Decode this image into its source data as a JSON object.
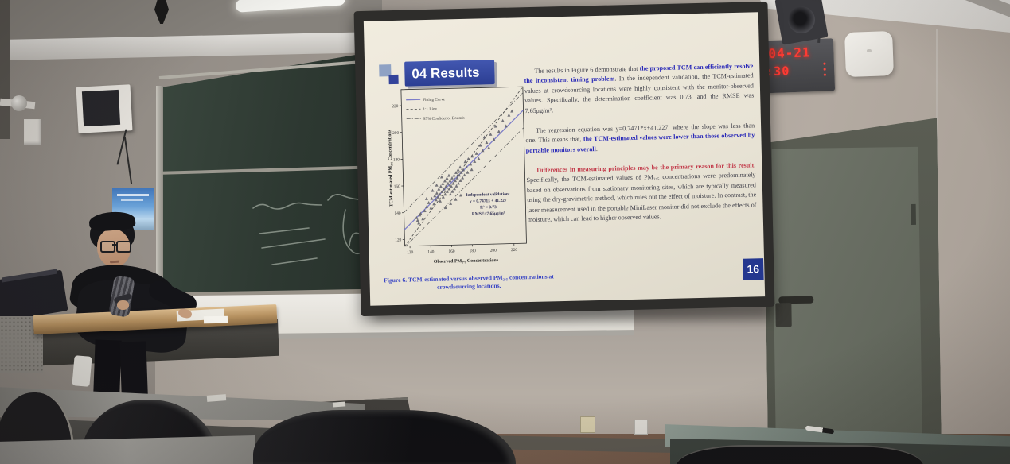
{
  "clock": {
    "date": "04-21",
    "time": ":30"
  },
  "slide": {
    "title": "04 Results",
    "page_number": "16",
    "caption": "Figure 6. TCM-estimated versus observed PM₂.₅ concentrations at crowdsourcing locations.",
    "paragraph1": {
      "t1": "The results in Figure 6 demonstrate that ",
      "b1": "the proposed TCM can efficiently resolve the inconsistent timing problem",
      "t2": ". In the independent validation, the TCM-estimated values at crowdsourcing locations were highly consistent with the monitor-observed values. Specifically, the determination coefficient was 0.73, and the RMSE was 7.65μg/m³."
    },
    "paragraph2": {
      "t1": "The regression equation was y=0.7471*x+41.227, where the slope was less than one. This means that, ",
      "b1": "the TCM-estimated values were lower than those observed by portable monitors overall",
      "t2": "."
    },
    "paragraph3": {
      "b1": "Differences in measuring principles may be the primary reason for this result",
      "t1": ". Specifically, the TCM-estimated values of PM₂.₅ concentrations were predominately based on observations from stationary monitoring sites, which are typically measured using the dry-gravimetric method, which rules out the effect of moisture. In contrast, the laser measurement used in the portable MiniLaser monitor did not exclude the effects of moisture, which can lead to higher observed values."
    }
  },
  "chart_data": {
    "type": "scatter",
    "title": "",
    "xlabel": "Observed PM₂.₅ Concentrations",
    "ylabel": "TCM-estimated PM₂.₅ Concentrations",
    "xlim": [
      115,
      232
    ],
    "ylim": [
      115,
      232
    ],
    "xticks": [
      120,
      140,
      160,
      180,
      200,
      220
    ],
    "yticks": [
      120,
      140,
      160,
      180,
      200,
      220
    ],
    "legend": [
      "Fitting Curve",
      "1:1 Line",
      "95% Confidence Bounds"
    ],
    "fit": {
      "slope": 0.7471,
      "intercept": 41.227
    },
    "confidence_offset": 13,
    "annotation": [
      "Independent validation:",
      "y = 0.7471x + 41.227",
      "R² = 0.73",
      "RMSE=7.65μg/m³"
    ],
    "points": [
      [
        127,
        136
      ],
      [
        129,
        132
      ],
      [
        131,
        139
      ],
      [
        133,
        135
      ],
      [
        128,
        134
      ],
      [
        135,
        141
      ],
      [
        130,
        138
      ],
      [
        137,
        144
      ],
      [
        139,
        147
      ],
      [
        141,
        143
      ],
      [
        142,
        150
      ],
      [
        144,
        146
      ],
      [
        145,
        152
      ],
      [
        146,
        149
      ],
      [
        147,
        154
      ],
      [
        148,
        151
      ],
      [
        149,
        157
      ],
      [
        150,
        153
      ],
      [
        150,
        148
      ],
      [
        151,
        159
      ],
      [
        152,
        155
      ],
      [
        153,
        151
      ],
      [
        153,
        161
      ],
      [
        154,
        157
      ],
      [
        155,
        153
      ],
      [
        155,
        163
      ],
      [
        156,
        159
      ],
      [
        157,
        155
      ],
      [
        157,
        165
      ],
      [
        158,
        161
      ],
      [
        159,
        157
      ],
      [
        159,
        167
      ],
      [
        160,
        163
      ],
      [
        160,
        153
      ],
      [
        161,
        159
      ],
      [
        162,
        165
      ],
      [
        162,
        155
      ],
      [
        163,
        161
      ],
      [
        164,
        167
      ],
      [
        164,
        157
      ],
      [
        165,
        163
      ],
      [
        166,
        169
      ],
      [
        166,
        159
      ],
      [
        167,
        165
      ],
      [
        168,
        161
      ],
      [
        168,
        171
      ],
      [
        169,
        167
      ],
      [
        170,
        163
      ],
      [
        170,
        173
      ],
      [
        171,
        169
      ],
      [
        172,
        165
      ],
      [
        173,
        171
      ],
      [
        174,
        167
      ],
      [
        175,
        177
      ],
      [
        176,
        173
      ],
      [
        177,
        169
      ],
      [
        178,
        179
      ],
      [
        180,
        175
      ],
      [
        181,
        171
      ],
      [
        182,
        181
      ],
      [
        184,
        177
      ],
      [
        186,
        183
      ],
      [
        188,
        179
      ],
      [
        190,
        189
      ],
      [
        192,
        185
      ],
      [
        194,
        195
      ],
      [
        196,
        191
      ],
      [
        198,
        187
      ],
      [
        200,
        197
      ],
      [
        203,
        193
      ],
      [
        205,
        203
      ],
      [
        208,
        199
      ],
      [
        212,
        207
      ],
      [
        215,
        203
      ],
      [
        218,
        211
      ],
      [
        221,
        214
      ],
      [
        155,
        143
      ],
      [
        160,
        146
      ],
      [
        165,
        149
      ],
      [
        170,
        152
      ],
      [
        147,
        160
      ],
      [
        152,
        166
      ],
      [
        143,
        156
      ],
      [
        137,
        150
      ]
    ]
  },
  "colors": {
    "accent_navy": "#2c3e93",
    "bold_blue": "#2929b8",
    "bold_red": "#c23a4a",
    "caption_blue": "#3a46c4",
    "fit_line": "#7e7ec9",
    "led_red": "#ff3b33"
  }
}
